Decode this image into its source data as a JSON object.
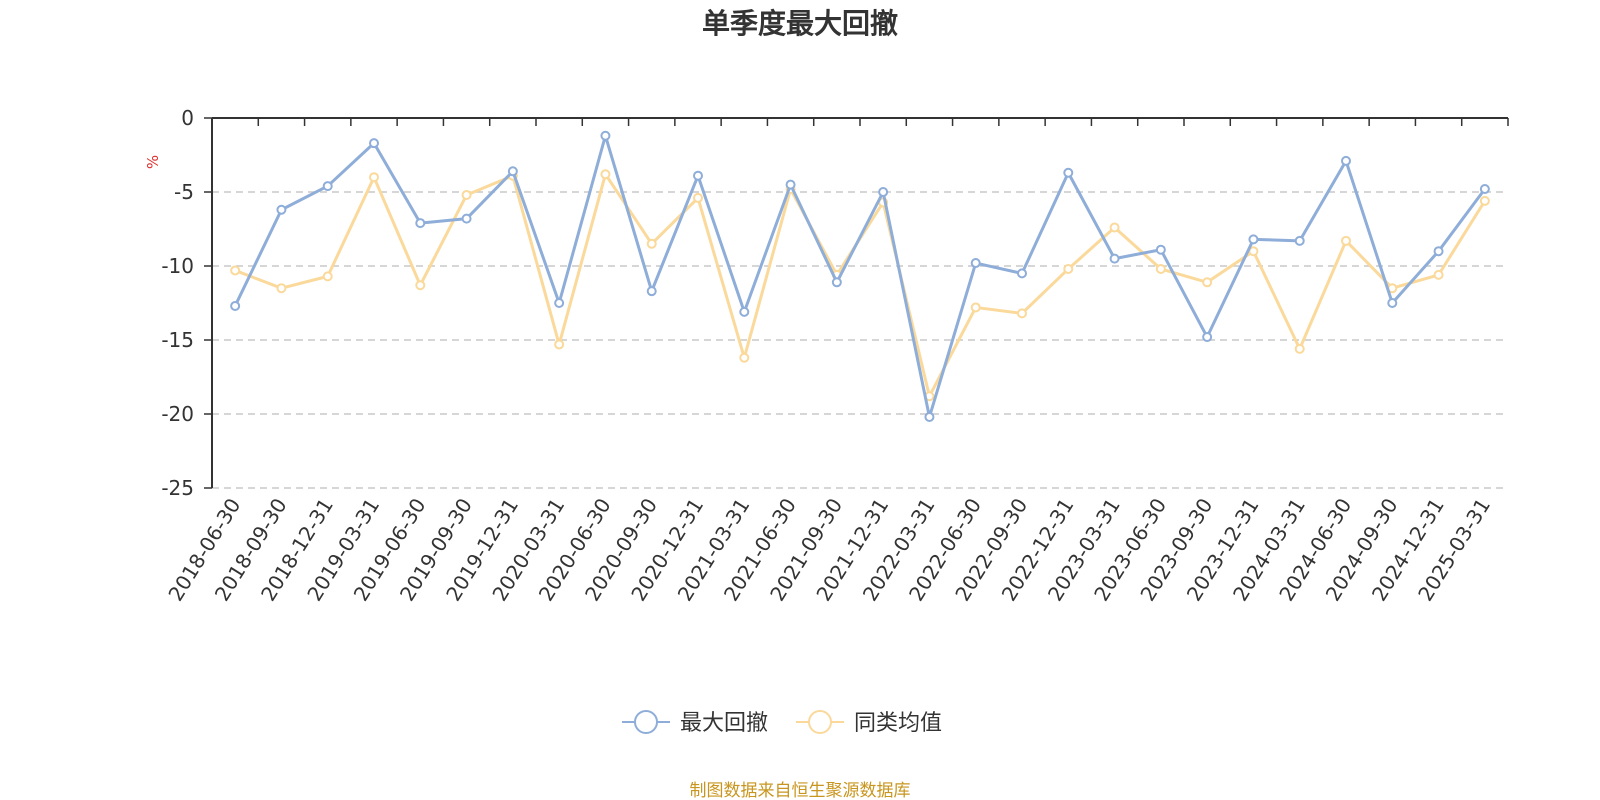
{
  "chart_data": {
    "type": "line",
    "title": "单季度最大回撤",
    "ylabel": "%",
    "ylim": [
      -25,
      0
    ],
    "yticks": [
      0,
      -5,
      -10,
      -15,
      -20,
      -25
    ],
    "grid": true,
    "legend_position": "bottom-center",
    "categories": [
      "2018-06-30",
      "2018-09-30",
      "2018-12-31",
      "2019-03-31",
      "2019-06-30",
      "2019-09-30",
      "2019-12-31",
      "2020-03-31",
      "2020-06-30",
      "2020-09-30",
      "2020-12-31",
      "2021-03-31",
      "2021-06-30",
      "2021-09-30",
      "2021-12-31",
      "2022-03-31",
      "2022-06-30",
      "2022-09-30",
      "2022-12-31",
      "2023-03-31",
      "2023-06-30",
      "2023-09-30",
      "2023-12-31",
      "2024-03-31",
      "2024-06-30",
      "2024-09-30",
      "2024-12-31",
      "2025-03-31"
    ],
    "series": [
      {
        "name": "最大回撤",
        "color": "#8eadd8",
        "values": [
          -12.7,
          -6.2,
          -4.6,
          -1.7,
          -7.1,
          -6.8,
          -3.6,
          -12.5,
          -1.2,
          -11.7,
          -3.9,
          -13.1,
          -4.5,
          -11.1,
          -5.0,
          -20.2,
          -9.8,
          -10.5,
          -3.7,
          -9.5,
          -8.9,
          -14.8,
          -8.2,
          -8.3,
          -2.9,
          -12.5,
          -9.0,
          -4.8
        ]
      },
      {
        "name": "同类均值",
        "color": "#fad99b",
        "values": [
          -10.3,
          -11.5,
          -10.7,
          -4.0,
          -11.3,
          -5.2,
          -3.9,
          -15.3,
          -3.8,
          -8.5,
          -5.4,
          -16.2,
          -4.8,
          -10.6,
          -5.7,
          -18.8,
          -12.8,
          -13.2,
          -10.2,
          -7.4,
          -10.2,
          -11.1,
          -9.0,
          -15.6,
          -8.3,
          -11.5,
          -10.6,
          -5.6
        ]
      }
    ]
  },
  "source_text": "制图数据来自恒生聚源数据库",
  "colors": {
    "unit_label": "#e03030",
    "source_text": "#c8961e",
    "grid": "#c8c8c8",
    "axis": "#333333"
  }
}
